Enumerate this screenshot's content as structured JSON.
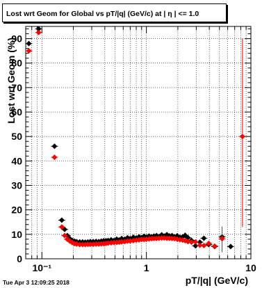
{
  "title": "Lost wrt Geom for Global vs pT/|q| (GeV/c) at |  η | <= 1.0",
  "timestamp": "Tue Apr  3 12:09:25 2018",
  "chart_data": {
    "type": "scatter",
    "title": "Lost wrt Geom for Global vs pT/|q| (GeV/c) at |  η | <= 1.0",
    "xlabel": "pT/|q| (GeV/c)",
    "ylabel": "Lost wrt Geom (%)",
    "xscale": "log",
    "xlim": [
      0.07,
      10
    ],
    "ylim": [
      0,
      95
    ],
    "grid": true,
    "x_tick_labels": [
      "10⁻¹",
      "1",
      "10"
    ],
    "y_tick_labels": [
      "0",
      "10",
      "20",
      "30",
      "40",
      "50",
      "60",
      "70",
      "80",
      "90"
    ],
    "series": [
      {
        "color": "#000000",
        "marker": "diamond",
        "points": [
          [
            0.075,
            88.0
          ],
          [
            0.093,
            94.0
          ],
          [
            0.132,
            46.0
          ],
          [
            0.155,
            15.8
          ],
          [
            0.165,
            12.0
          ],
          [
            0.175,
            9.5
          ],
          [
            0.185,
            8.2
          ],
          [
            0.195,
            7.5
          ],
          [
            0.205,
            7.2
          ],
          [
            0.215,
            7.0
          ],
          [
            0.23,
            6.9
          ],
          [
            0.245,
            6.9
          ],
          [
            0.26,
            6.8
          ],
          [
            0.275,
            6.9
          ],
          [
            0.29,
            7.0
          ],
          [
            0.31,
            7.0
          ],
          [
            0.33,
            7.1
          ],
          [
            0.35,
            7.0
          ],
          [
            0.37,
            7.2
          ],
          [
            0.39,
            7.4
          ],
          [
            0.41,
            7.4
          ],
          [
            0.43,
            7.5
          ],
          [
            0.46,
            7.8
          ],
          [
            0.49,
            7.5
          ],
          [
            0.52,
            8.0
          ],
          [
            0.55,
            7.7
          ],
          [
            0.58,
            8.3
          ],
          [
            0.62,
            8.0
          ],
          [
            0.66,
            8.6
          ],
          [
            0.7,
            8.3
          ],
          [
            0.75,
            8.8
          ],
          [
            0.8,
            8.5
          ],
          [
            0.85,
            9.0
          ],
          [
            0.9,
            8.7
          ],
          [
            0.95,
            9.2
          ],
          [
            1.0,
            8.9
          ],
          [
            1.06,
            9.3
          ],
          [
            1.12,
            9.0
          ],
          [
            1.18,
            9.3
          ],
          [
            1.25,
            9.5
          ],
          [
            1.32,
            9.1
          ],
          [
            1.4,
            9.8
          ],
          [
            1.48,
            9.3
          ],
          [
            1.57,
            9.9
          ],
          [
            1.66,
            9.4
          ],
          [
            1.76,
            9.5
          ],
          [
            1.86,
            9.0
          ],
          [
            1.97,
            9.4
          ],
          [
            2.09,
            8.8
          ],
          [
            2.22,
            9.0
          ],
          [
            2.35,
            9.6
          ],
          [
            2.5,
            8.6
          ],
          [
            2.7,
            7.5
          ],
          [
            2.95,
            5.3
          ],
          [
            3.25,
            6.8
          ],
          [
            3.55,
            8.4
          ],
          [
            3.95,
            5.8
          ],
          [
            4.5,
            5.0
          ],
          [
            5.3,
            9.0
          ],
          [
            6.4,
            5.0
          ]
        ]
      },
      {
        "color": "#ff0000",
        "marker": "diamond",
        "points": [
          [
            0.075,
            85.0
          ],
          [
            0.093,
            92.5
          ],
          [
            0.132,
            41.5
          ],
          [
            0.155,
            13.0
          ],
          [
            0.165,
            9.5
          ],
          [
            0.175,
            8.0
          ],
          [
            0.185,
            7.2
          ],
          [
            0.195,
            6.6
          ],
          [
            0.205,
            6.2
          ],
          [
            0.215,
            6.0
          ],
          [
            0.23,
            5.8
          ],
          [
            0.245,
            5.8
          ],
          [
            0.26,
            5.8
          ],
          [
            0.275,
            5.9
          ],
          [
            0.29,
            5.9
          ],
          [
            0.31,
            5.9
          ],
          [
            0.33,
            6.0
          ],
          [
            0.35,
            6.0
          ],
          [
            0.37,
            6.1
          ],
          [
            0.39,
            6.2
          ],
          [
            0.41,
            6.3
          ],
          [
            0.43,
            6.4
          ],
          [
            0.46,
            6.5
          ],
          [
            0.49,
            6.6
          ],
          [
            0.52,
            6.7
          ],
          [
            0.55,
            6.8
          ],
          [
            0.58,
            6.9
          ],
          [
            0.62,
            7.0
          ],
          [
            0.66,
            7.2
          ],
          [
            0.7,
            7.3
          ],
          [
            0.75,
            7.4
          ],
          [
            0.8,
            7.6
          ],
          [
            0.85,
            7.7
          ],
          [
            0.9,
            7.9
          ],
          [
            0.95,
            7.9
          ],
          [
            1.0,
            8.0
          ],
          [
            1.06,
            8.1
          ],
          [
            1.12,
            8.2
          ],
          [
            1.18,
            8.3
          ],
          [
            1.25,
            8.3
          ],
          [
            1.32,
            8.4
          ],
          [
            1.4,
            8.5
          ],
          [
            1.48,
            8.5
          ],
          [
            1.57,
            8.4
          ],
          [
            1.66,
            8.4
          ],
          [
            1.76,
            8.3
          ],
          [
            1.86,
            8.2
          ],
          [
            1.97,
            8.0
          ],
          [
            2.09,
            7.8
          ],
          [
            2.22,
            7.6
          ],
          [
            2.35,
            7.4
          ],
          [
            2.5,
            7.0
          ],
          [
            2.7,
            6.8
          ],
          [
            2.95,
            6.9
          ],
          [
            3.25,
            5.5
          ],
          [
            3.55,
            5.4
          ],
          [
            3.95,
            6.3
          ],
          [
            4.5,
            5.2
          ],
          [
            5.3,
            8.2
          ],
          [
            8.3,
            50.0
          ]
        ],
        "errors": [
          [
            0,
            0
          ],
          [
            0,
            0
          ],
          [
            0,
            0
          ],
          [
            0,
            0
          ],
          [
            0,
            0
          ],
          [
            0,
            0
          ],
          [
            0,
            0
          ],
          [
            0,
            0
          ],
          [
            0,
            0
          ],
          [
            0,
            0
          ],
          [
            0,
            0
          ],
          [
            0,
            0
          ],
          [
            0,
            0
          ],
          [
            0,
            0
          ],
          [
            0,
            0
          ],
          [
            0,
            0
          ],
          [
            0,
            0
          ],
          [
            0,
            0
          ],
          [
            0,
            0
          ],
          [
            0,
            0
          ],
          [
            0,
            0
          ],
          [
            0,
            0
          ],
          [
            0,
            0
          ],
          [
            0,
            0
          ],
          [
            0,
            0
          ],
          [
            0,
            0
          ],
          [
            0,
            0
          ],
          [
            0,
            0
          ],
          [
            0,
            0
          ],
          [
            0,
            0
          ],
          [
            0,
            0
          ],
          [
            0,
            0
          ],
          [
            0,
            0
          ],
          [
            0,
            0
          ],
          [
            0,
            0
          ],
          [
            0,
            0
          ],
          [
            0,
            0
          ],
          [
            0,
            0
          ],
          [
            0,
            0
          ],
          [
            0,
            0
          ],
          [
            0,
            0
          ],
          [
            0,
            0
          ],
          [
            0,
            0
          ],
          [
            0,
            0
          ],
          [
            0,
            0
          ],
          [
            0,
            0
          ],
          [
            0,
            0
          ],
          [
            0,
            0
          ],
          [
            0,
            0
          ],
          [
            0,
            0
          ],
          [
            0,
            0
          ],
          [
            0,
            0
          ],
          [
            0,
            0
          ],
          [
            0,
            0
          ],
          [
            0,
            0
          ],
          [
            0,
            0
          ],
          [
            0,
            0
          ],
          [
            0,
            0
          ],
          [
            5.5,
            5.0
          ],
          [
            37.0,
            40.0
          ]
        ]
      }
    ]
  }
}
